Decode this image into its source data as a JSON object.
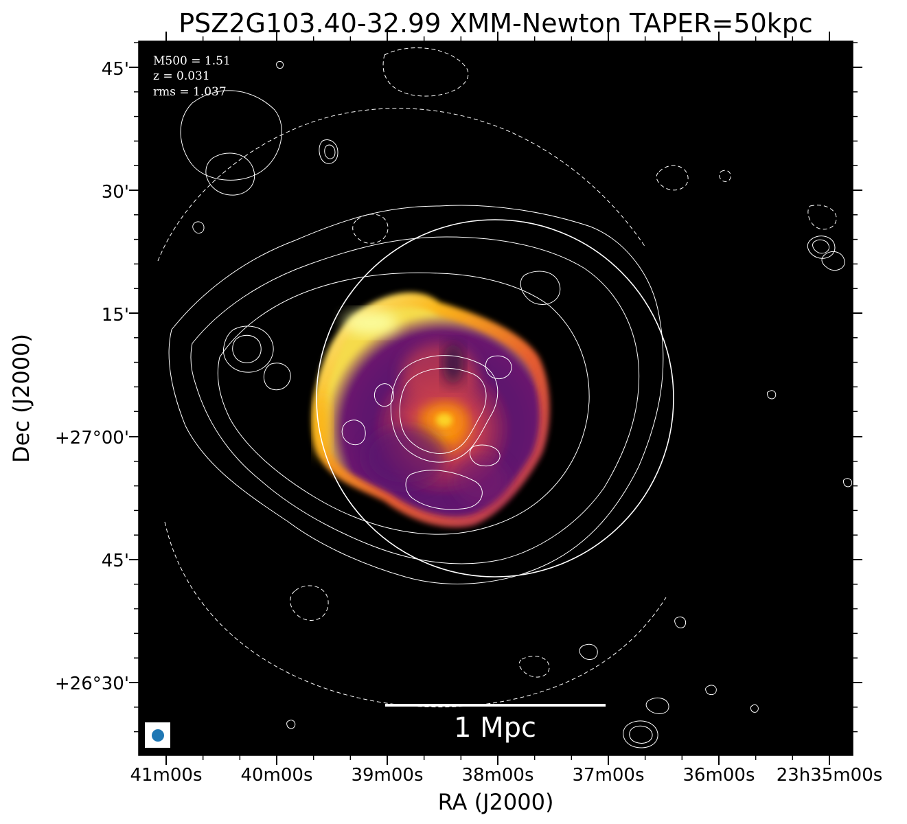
{
  "title": "PSZ2G103.40-32.99 XMM-Newton TAPER=50kpc",
  "xlabel": "RA (J2000)",
  "ylabel": "Dec (J2000)",
  "x_ticks": [
    "41m00s",
    "40m00s",
    "39m00s",
    "38m00s",
    "37m00s",
    "36m00s",
    "23h35m00s"
  ],
  "y_ticks": [
    "45'",
    "30'",
    "15'",
    "+27°00'",
    "45'",
    "+26°30'"
  ],
  "info": {
    "m500": "M500 = 1.51",
    "z": "z = 0.031",
    "rms": "rms = 1.037"
  },
  "scale_bar_label": "1 Mpc",
  "colors": {
    "background": "#000000",
    "contour": "#ffffff",
    "beam": "#1f77b4",
    "colormap": "inferno"
  }
}
